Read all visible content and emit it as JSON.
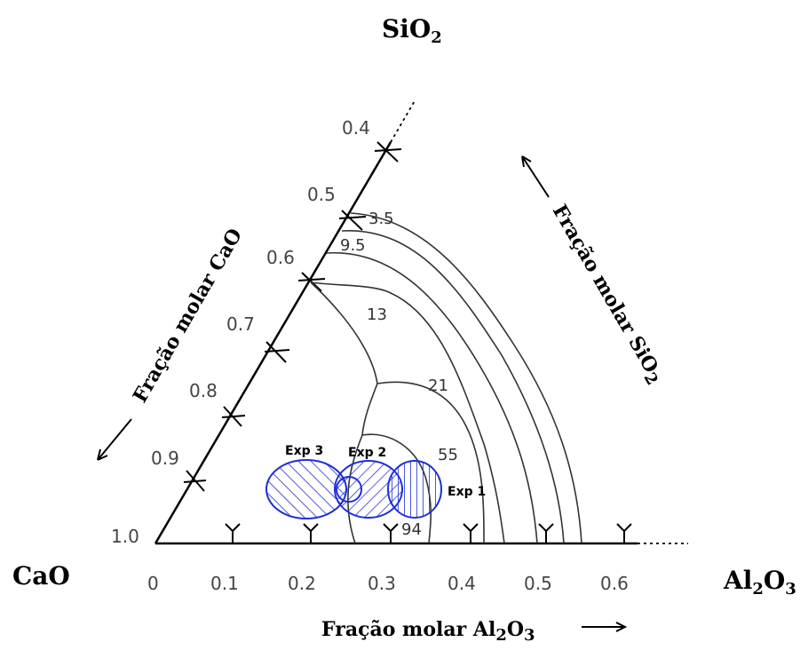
{
  "corners": {
    "top": {
      "main": "SiO",
      "sub": "2"
    },
    "left": "CaO",
    "right": {
      "p1": "Al",
      "s1": "2",
      "p2": "O",
      "s2": "3"
    }
  },
  "axis_titles": {
    "bottom": {
      "p1": "Fração molar Al",
      "s1": "2",
      "p2": "O",
      "s2": "3"
    },
    "left": "Fração molar CaO",
    "right": {
      "main": "Fração molar SiO",
      "sub": "2"
    }
  },
  "bottom_ticks": [
    "0",
    "0.1",
    "0.2",
    "0.3",
    "0.4",
    "0.5",
    "0.6"
  ],
  "left_ticks": [
    "1.0",
    "0.9",
    "0.8",
    "0.7",
    "0.6",
    "0.5",
    "0.4"
  ],
  "contour_labels": [
    "3.5",
    "9.5",
    "13",
    "21",
    "55",
    "94"
  ],
  "experiments": [
    "Exp 3",
    "Exp 2",
    "Exp 1"
  ],
  "colors": {
    "axes": "#000000",
    "contours": "#333333",
    "experiments": "#1f2fd6"
  }
}
